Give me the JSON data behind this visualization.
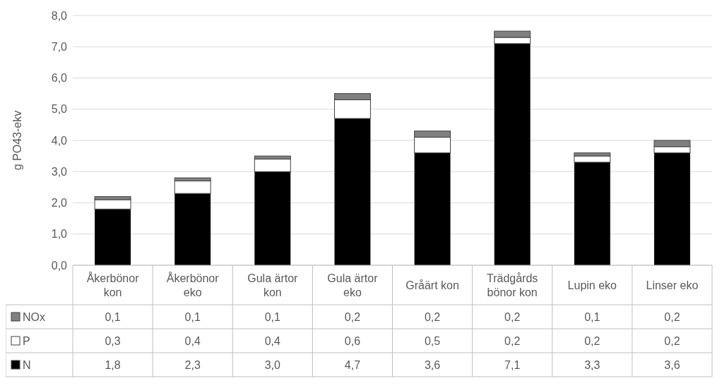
{
  "chart_data": {
    "type": "bar",
    "stacked": true,
    "ylabel": "g PO43-ekv",
    "categories": [
      "Åkerbönor kon",
      "Åkerbönor eko",
      "Gula ärtor kon",
      "Gula ärtor eko",
      "Gråärt kon",
      "Trädgårds bönor kon",
      "Lupin eko",
      "Linser eko"
    ],
    "series": [
      {
        "name": "N",
        "color": "#000000",
        "values": [
          1.8,
          2.3,
          3.0,
          4.7,
          3.6,
          7.1,
          3.3,
          3.6
        ],
        "value_labels": [
          "1,8",
          "2,3",
          "3,0",
          "4,7",
          "3,6",
          "7,1",
          "3,3",
          "3,6"
        ]
      },
      {
        "name": "P",
        "color": "#ffffff",
        "values": [
          0.3,
          0.4,
          0.4,
          0.6,
          0.5,
          0.2,
          0.2,
          0.2
        ],
        "value_labels": [
          "0,3",
          "0,4",
          "0,4",
          "0,6",
          "0,5",
          "0,2",
          "0,2",
          "0,2"
        ]
      },
      {
        "name": "NOx",
        "color": "#808080",
        "values": [
          0.1,
          0.1,
          0.1,
          0.2,
          0.2,
          0.2,
          0.1,
          0.2
        ],
        "value_labels": [
          "0,1",
          "0,1",
          "0,1",
          "0,2",
          "0,2",
          "0,2",
          "0,1",
          "0,2"
        ]
      }
    ],
    "ylim": [
      0,
      8
    ],
    "yticks": [
      {
        "value": 0,
        "label": "0,0"
      },
      {
        "value": 1,
        "label": "1,0"
      },
      {
        "value": 2,
        "label": "2,0"
      },
      {
        "value": 3,
        "label": "3,0"
      },
      {
        "value": 4,
        "label": "4,0"
      },
      {
        "value": 5,
        "label": "5,0"
      },
      {
        "value": 6,
        "label": "6,0"
      },
      {
        "value": 7,
        "label": "7,0"
      },
      {
        "value": 8,
        "label": "8,0"
      }
    ],
    "grid": "y",
    "legend": "bottom"
  }
}
